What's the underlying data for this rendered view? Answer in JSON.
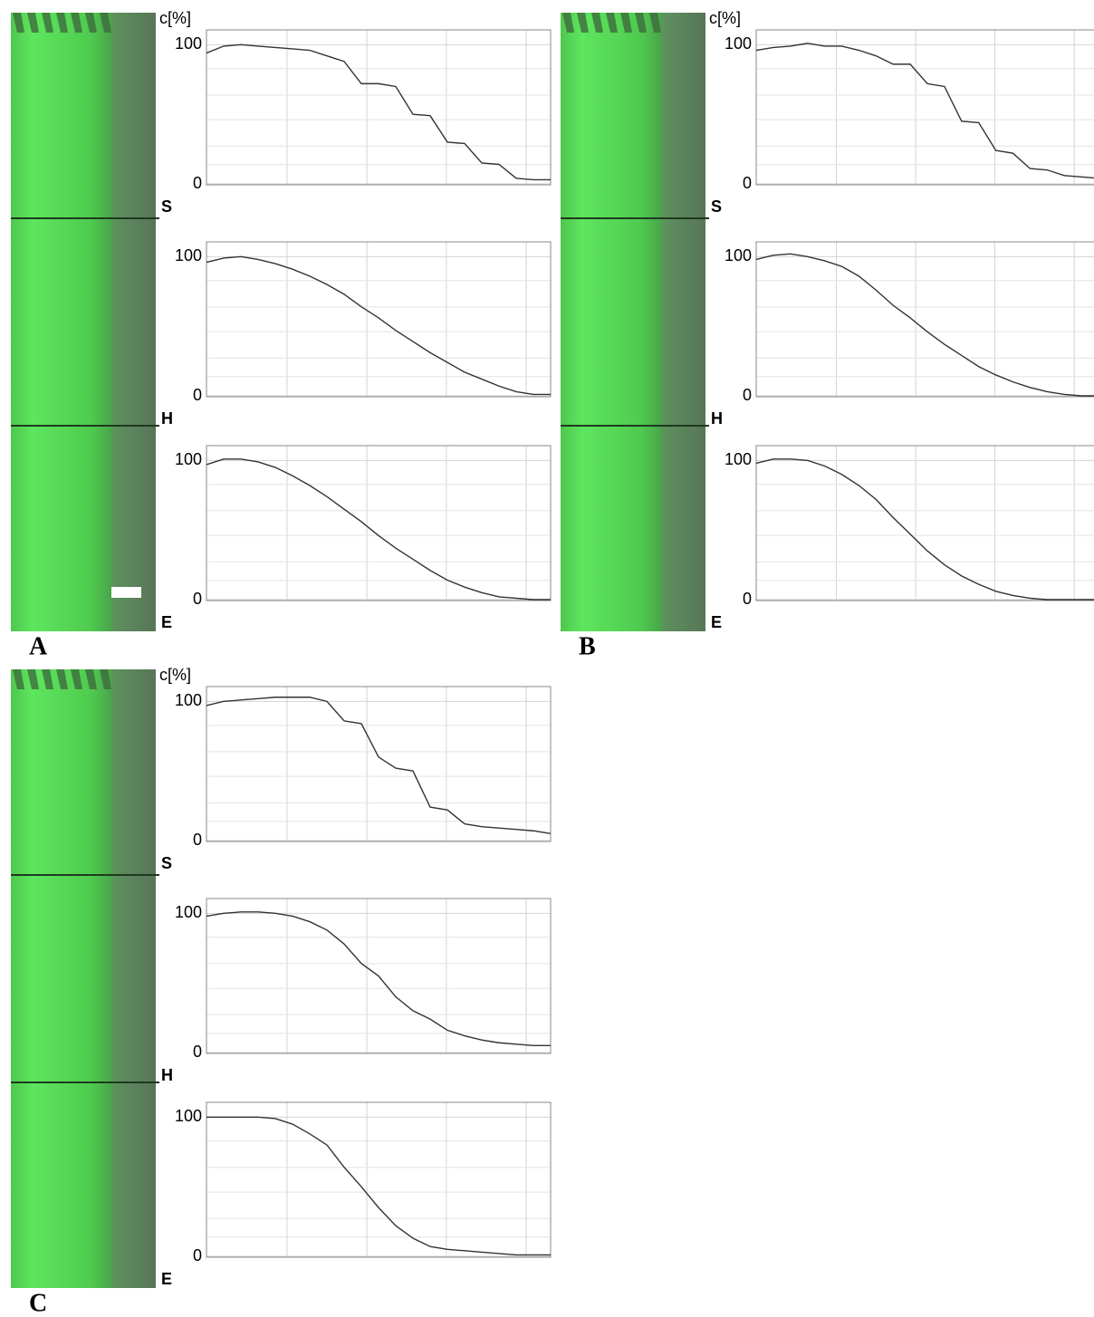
{
  "panels": [
    "A",
    "B",
    "C"
  ],
  "chart_data": [
    {
      "type": "line",
      "y_label": "c[%]",
      "label": "S",
      "ylim": [
        0,
        110
      ],
      "yticks": [
        0,
        100
      ],
      "xlim": [
        0,
        20
      ],
      "x": [
        0,
        1,
        2,
        3,
        4,
        5,
        6,
        7,
        8,
        9,
        10,
        11,
        12,
        13,
        14,
        15,
        16,
        17,
        18,
        19,
        20
      ],
      "series": [
        {
          "color": "#333333",
          "values": [
            94,
            99,
            100,
            99,
            98,
            97,
            96,
            92,
            88,
            72,
            72,
            70,
            50,
            49,
            30,
            29,
            15,
            14,
            4,
            3,
            3
          ]
        }
      ]
    },
    {
      "type": "line",
      "label": "H",
      "ylim": [
        0,
        110
      ],
      "yticks": [
        0,
        100
      ],
      "xlim": [
        0,
        20
      ],
      "x": [
        0,
        1,
        2,
        3,
        4,
        5,
        6,
        7,
        8,
        9,
        10,
        11,
        12,
        13,
        14,
        15,
        16,
        17,
        18,
        19,
        20
      ],
      "series": [
        {
          "color": "#333333",
          "values": [
            96,
            99,
            100,
            98,
            95,
            91,
            86,
            80,
            73,
            64,
            56,
            47,
            39,
            31,
            24,
            17,
            12,
            7,
            3,
            1,
            1
          ]
        }
      ]
    },
    {
      "type": "line",
      "label": "E",
      "ylim": [
        0,
        110
      ],
      "yticks": [
        0,
        100
      ],
      "xlim": [
        0,
        20
      ],
      "x": [
        0,
        1,
        2,
        3,
        4,
        5,
        6,
        7,
        8,
        9,
        10,
        11,
        12,
        13,
        14,
        15,
        16,
        17,
        18,
        19,
        20
      ],
      "series": [
        {
          "color": "#333333",
          "values": [
            97,
            101,
            101,
            99,
            95,
            89,
            82,
            74,
            65,
            56,
            46,
            37,
            29,
            21,
            14,
            9,
            5,
            2,
            1,
            0,
            0
          ]
        }
      ]
    },
    {
      "type": "line",
      "y_label": "c[%]",
      "label": "S",
      "ylim": [
        0,
        110
      ],
      "yticks": [
        0,
        100
      ],
      "xlim": [
        0,
        20
      ],
      "x": [
        0,
        1,
        2,
        3,
        4,
        5,
        6,
        7,
        8,
        9,
        10,
        11,
        12,
        13,
        14,
        15,
        16,
        17,
        18,
        19,
        20
      ],
      "series": [
        {
          "color": "#333333",
          "values": [
            96,
            98,
            99,
            101,
            99,
            99,
            96,
            92,
            86,
            86,
            72,
            70,
            45,
            44,
            24,
            22,
            11,
            10,
            6,
            5,
            4
          ]
        }
      ]
    },
    {
      "type": "line",
      "label": "H",
      "ylim": [
        0,
        110
      ],
      "yticks": [
        0,
        100
      ],
      "xlim": [
        0,
        20
      ],
      "x": [
        0,
        1,
        2,
        3,
        4,
        5,
        6,
        7,
        8,
        9,
        10,
        11,
        12,
        13,
        14,
        15,
        16,
        17,
        18,
        19,
        20
      ],
      "series": [
        {
          "color": "#333333",
          "values": [
            98,
            101,
            102,
            100,
            97,
            93,
            86,
            76,
            65,
            56,
            46,
            37,
            29,
            21,
            15,
            10,
            6,
            3,
            1,
            0,
            0
          ]
        }
      ]
    },
    {
      "type": "line",
      "label": "E",
      "ylim": [
        0,
        110
      ],
      "yticks": [
        0,
        100
      ],
      "xlim": [
        0,
        20
      ],
      "x": [
        0,
        1,
        2,
        3,
        4,
        5,
        6,
        7,
        8,
        9,
        10,
        11,
        12,
        13,
        14,
        15,
        16,
        17,
        18,
        19,
        20
      ],
      "series": [
        {
          "color": "#333333",
          "values": [
            98,
            101,
            101,
            100,
            96,
            90,
            82,
            72,
            59,
            47,
            35,
            25,
            17,
            11,
            6,
            3,
            1,
            0,
            0,
            0,
            0
          ]
        }
      ]
    },
    {
      "type": "line",
      "y_label": "c[%]",
      "label": "S",
      "ylim": [
        0,
        110
      ],
      "yticks": [
        0,
        100
      ],
      "xlim": [
        0,
        20
      ],
      "x": [
        0,
        1,
        2,
        3,
        4,
        5,
        6,
        7,
        8,
        9,
        10,
        11,
        12,
        13,
        14,
        15,
        16,
        17,
        18,
        19,
        20
      ],
      "series": [
        {
          "color": "#333333",
          "values": [
            97,
            100,
            101,
            102,
            103,
            103,
            103,
            100,
            86,
            84,
            60,
            52,
            50,
            24,
            22,
            12,
            10,
            9,
            8,
            7,
            5
          ]
        }
      ]
    },
    {
      "type": "line",
      "label": "H",
      "ylim": [
        0,
        110
      ],
      "yticks": [
        0,
        100
      ],
      "xlim": [
        0,
        20
      ],
      "x": [
        0,
        1,
        2,
        3,
        4,
        5,
        6,
        7,
        8,
        9,
        10,
        11,
        12,
        13,
        14,
        15,
        16,
        17,
        18,
        19,
        20
      ],
      "series": [
        {
          "color": "#333333",
          "values": [
            98,
            100,
            101,
            101,
            100,
            98,
            94,
            88,
            78,
            64,
            55,
            40,
            30,
            24,
            16,
            12,
            9,
            7,
            6,
            5,
            5
          ]
        }
      ]
    },
    {
      "type": "line",
      "label": "E",
      "ylim": [
        0,
        110
      ],
      "yticks": [
        0,
        100
      ],
      "xlim": [
        0,
        20
      ],
      "x": [
        0,
        1,
        2,
        3,
        4,
        5,
        6,
        7,
        8,
        9,
        10,
        11,
        12,
        13,
        14,
        15,
        16,
        17,
        18,
        19,
        20
      ],
      "series": [
        {
          "color": "#333333",
          "values": [
            100,
            100,
            100,
            100,
            99,
            95,
            88,
            80,
            64,
            50,
            35,
            22,
            13,
            7,
            5,
            4,
            3,
            2,
            1,
            1,
            1
          ]
        }
      ]
    }
  ]
}
